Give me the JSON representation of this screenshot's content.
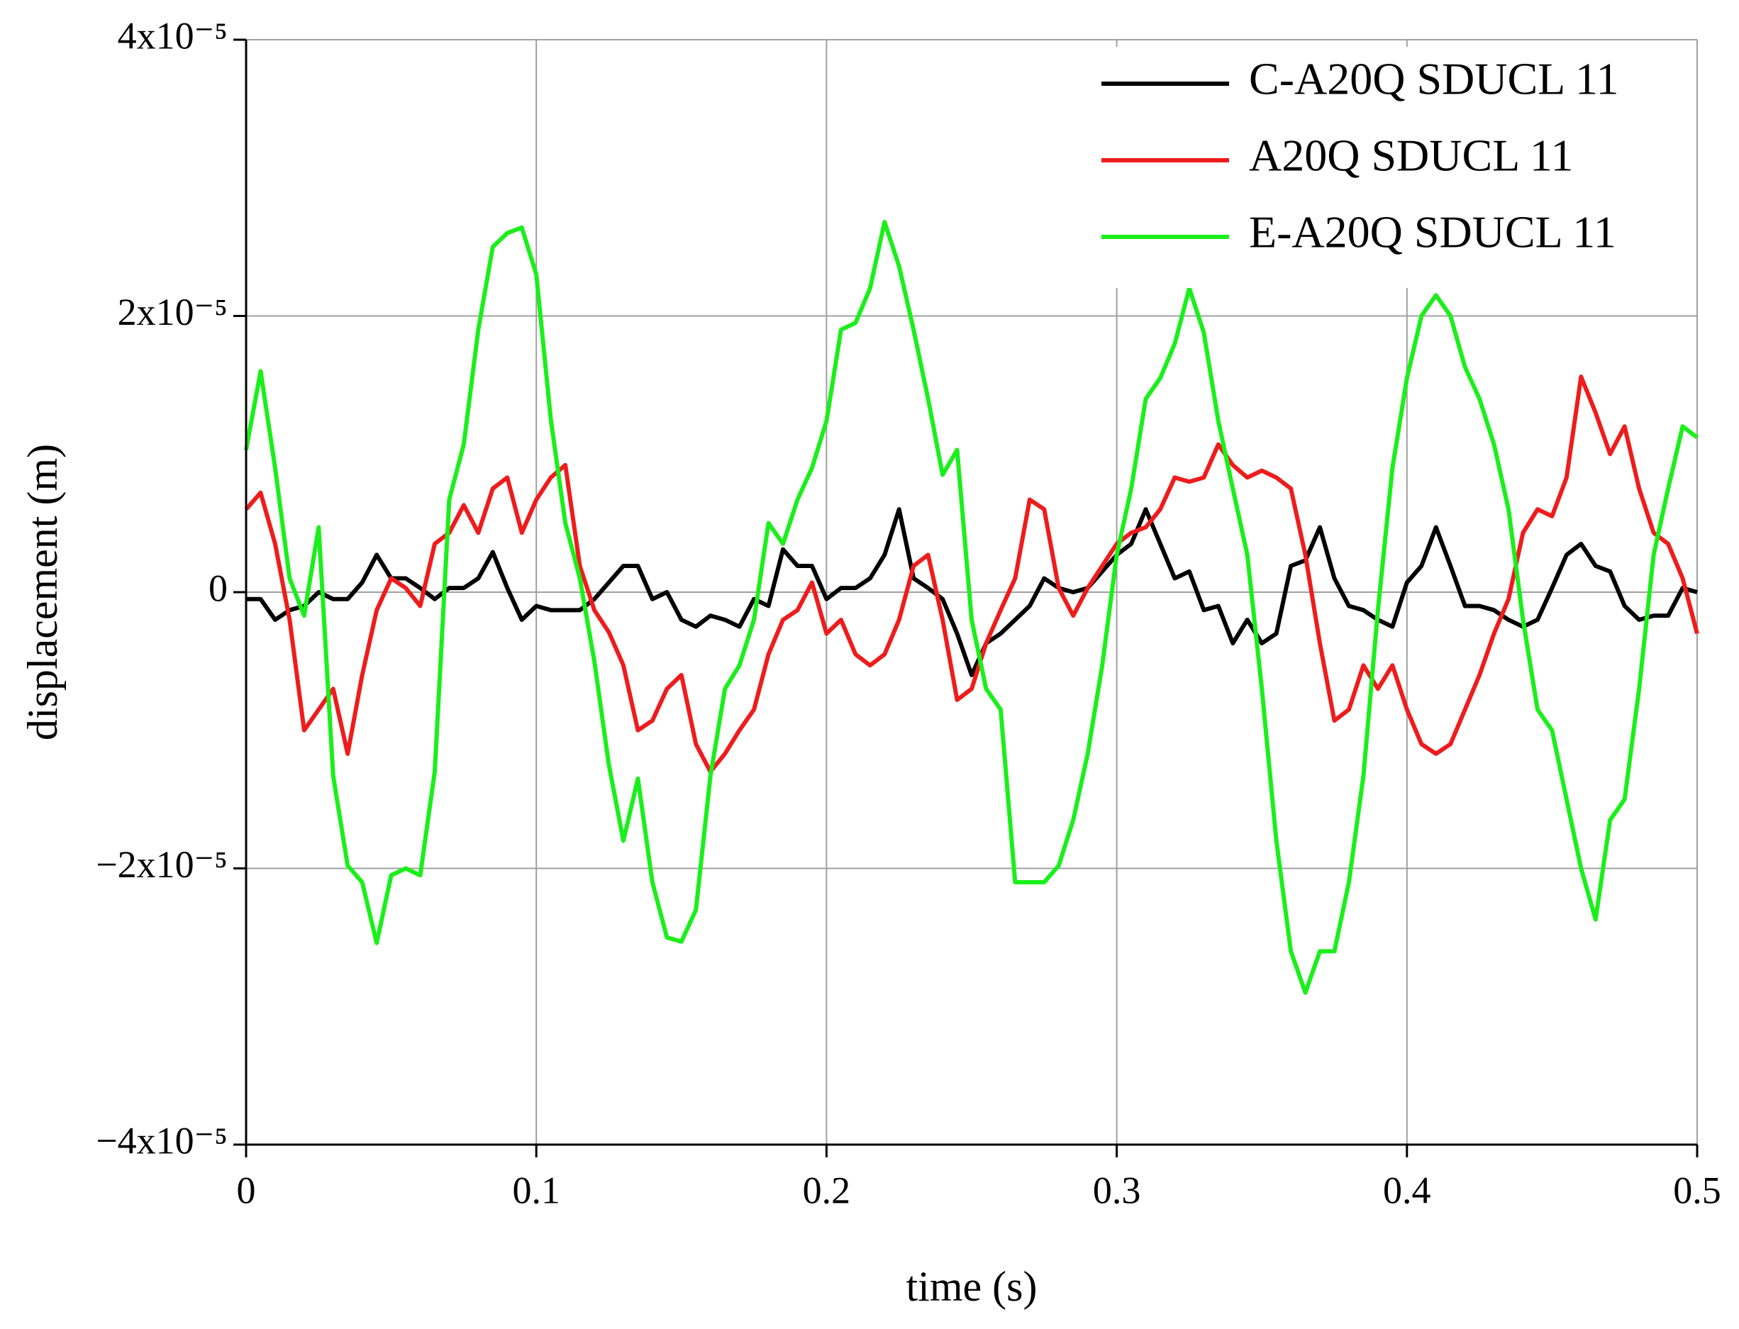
{
  "chart_data": {
    "type": "line",
    "xlabel": "time (s)",
    "ylabel": "displacement (m)",
    "xlim": [
      0,
      0.5
    ],
    "ylim": [
      -4e-05,
      4e-05
    ],
    "xticks": [
      0,
      0.1,
      0.2,
      0.3,
      0.4,
      0.5
    ],
    "yticks": [
      {
        "value": -4e-05,
        "label": "−4x10⁻⁵"
      },
      {
        "value": -2e-05,
        "label": "−2x10⁻⁵"
      },
      0,
      {
        "value": 2e-05,
        "label": "2x10⁻⁵"
      },
      {
        "value": 4e-05,
        "label": "4x10⁻⁵"
      }
    ],
    "grid": true,
    "legend": "upper right",
    "x": [
      0,
      0.005,
      0.01,
      0.015,
      0.02,
      0.025,
      0.03,
      0.035,
      0.04,
      0.045,
      0.05,
      0.055,
      0.06,
      0.065,
      0.07,
      0.075,
      0.08,
      0.085,
      0.09,
      0.095,
      0.1,
      0.105,
      0.11,
      0.115,
      0.12,
      0.125,
      0.13,
      0.135,
      0.14,
      0.145,
      0.15,
      0.155,
      0.16,
      0.165,
      0.17,
      0.175,
      0.18,
      0.185,
      0.19,
      0.195,
      0.2,
      0.205,
      0.21,
      0.215,
      0.22,
      0.225,
      0.23,
      0.235,
      0.24,
      0.245,
      0.25,
      0.255,
      0.26,
      0.265,
      0.27,
      0.275,
      0.28,
      0.285,
      0.29,
      0.295,
      0.3,
      0.305,
      0.31,
      0.315,
      0.32,
      0.325,
      0.33,
      0.335,
      0.34,
      0.345,
      0.35,
      0.355,
      0.36,
      0.365,
      0.37,
      0.375,
      0.38,
      0.385,
      0.39,
      0.395,
      0.4,
      0.405,
      0.41,
      0.415,
      0.42,
      0.425,
      0.43,
      0.435,
      0.44,
      0.445,
      0.45,
      0.455,
      0.46,
      0.465,
      0.47,
      0.475,
      0.48,
      0.485,
      0.49,
      0.495,
      0.5
    ],
    "series": [
      {
        "name": "C-A20Q SDUCL 11",
        "color": "#000000",
        "values": [
          -5e-07,
          -5e-07,
          -2e-06,
          -1.3e-06,
          -1e-06,
          0,
          -5e-07,
          -5e-07,
          7e-07,
          2.7e-06,
          1e-06,
          1e-06,
          3e-07,
          -5e-07,
          3e-07,
          3e-07,
          1e-06,
          2.9e-06,
          3e-07,
          -2e-06,
          -1e-06,
          -1.3e-06,
          -1.3e-06,
          -1.3e-06,
          -5e-07,
          7e-07,
          1.9e-06,
          1.9e-06,
          -5e-07,
          0,
          -2e-06,
          -2.5e-06,
          -1.7e-06,
          -2e-06,
          -2.5e-06,
          -5e-07,
          -1e-06,
          3.1e-06,
          1.9e-06,
          1.9e-06,
          -5e-07,
          3e-07,
          3e-07,
          1e-06,
          2.7e-06,
          6e-06,
          1e-06,
          3e-07,
          -5e-07,
          -3e-06,
          -6e-06,
          -3.7e-06,
          -3e-06,
          -2e-06,
          -1e-06,
          1e-06,
          3e-07,
          0,
          3e-07,
          1.5e-06,
          2.7e-06,
          3.5e-06,
          6e-06,
          3.5e-06,
          1e-06,
          1.5e-06,
          -1.3e-06,
          -1e-06,
          -3.7e-06,
          -2e-06,
          -3.7e-06,
          -3e-06,
          1.9e-06,
          2.3e-06,
          4.7e-06,
          1e-06,
          -1e-06,
          -1.3e-06,
          -2e-06,
          -2.5e-06,
          7e-07,
          1.9e-06,
          4.7e-06,
          1.9e-06,
          -1e-06,
          -1e-06,
          -1.3e-06,
          -2e-06,
          -2.5e-06,
          -2e-06,
          3e-07,
          2.7e-06,
          3.5e-06,
          1.9e-06,
          1.5e-06,
          -1e-06,
          -2e-06,
          -1.7e-06,
          -1.7e-06,
          3e-07,
          0
        ]
      },
      {
        "name": "A20Q SDUCL 11",
        "color": "#ee1c1c",
        "values": [
          6e-06,
          7.2e-06,
          3.5e-06,
          -2e-06,
          -1e-05,
          -8.5e-06,
          -7e-06,
          -1.17e-05,
          -6e-06,
          -1.3e-06,
          1e-06,
          3e-07,
          -1e-06,
          3.5e-06,
          4.3e-06,
          6.3e-06,
          4.3e-06,
          7.5e-06,
          8.3e-06,
          4.3e-06,
          6.7e-06,
          8.3e-06,
          9.2e-06,
          1.9e-06,
          -1.3e-06,
          -2.9e-06,
          -5.3e-06,
          -1e-05,
          -9.3e-06,
          -7e-06,
          -6e-06,
          -1.1e-05,
          -1.3e-05,
          -1.17e-05,
          -1e-05,
          -8.5e-06,
          -4.5e-06,
          -2e-06,
          -1.3e-06,
          7e-07,
          -3e-06,
          -2e-06,
          -4.5e-06,
          -5.3e-06,
          -4.5e-06,
          -2e-06,
          1.9e-06,
          2.7e-06,
          -2e-06,
          -7.8e-06,
          -7e-06,
          -3.7e-06,
          -1.3e-06,
          1e-06,
          6.7e-06,
          6e-06,
          3e-07,
          -1.7e-06,
          3e-07,
          1.9e-06,
          3.5e-06,
          4.3e-06,
          4.7e-06,
          6e-06,
          8.3e-06,
          8e-06,
          8.3e-06,
          1.07e-05,
          9.2e-06,
          8.3e-06,
          8.8e-06,
          8.3e-06,
          7.5e-06,
          2.7e-06,
          -3.7e-06,
          -9.3e-06,
          -8.5e-06,
          -5.3e-06,
          -7e-06,
          -5.3e-06,
          -8.5e-06,
          -1.1e-05,
          -1.17e-05,
          -1.1e-05,
          -8.5e-06,
          -6e-06,
          -3e-06,
          -5e-07,
          4.3e-06,
          6e-06,
          5.5e-06,
          8.3e-06,
          1.56e-05,
          1.3e-05,
          1e-05,
          1.2e-05,
          7.5e-06,
          4.3e-06,
          3.5e-06,
          1e-06,
          -3e-06
        ]
      },
      {
        "name": "E-A20Q SDUCL 11",
        "color": "#1aef1a",
        "values": [
          1.03e-05,
          1.6e-05,
          9e-06,
          1e-06,
          -1.7e-06,
          4.7e-06,
          -1.33e-05,
          -1.98e-05,
          -2.1e-05,
          -2.54e-05,
          -2.05e-05,
          -2e-05,
          -2.05e-05,
          -1.3e-05,
          6.7e-06,
          1.07e-05,
          1.9e-05,
          2.5e-05,
          2.6e-05,
          2.64e-05,
          2.3e-05,
          1.25e-05,
          5e-06,
          1e-06,
          -5e-06,
          -1.25e-05,
          -1.8e-05,
          -1.35e-05,
          -2.1e-05,
          -2.5e-05,
          -2.53e-05,
          -2.3e-05,
          -1.33e-05,
          -7e-06,
          -5.3e-06,
          -2e-06,
          5e-06,
          3.5e-06,
          6.7e-06,
          9e-06,
          1.24e-05,
          1.9e-05,
          1.95e-05,
          2.2e-05,
          2.68e-05,
          2.36e-05,
          1.9e-05,
          1.4e-05,
          8.5e-06,
          1.03e-05,
          -2e-06,
          -7e-06,
          -8.5e-06,
          -2.1e-05,
          -2.1e-05,
          -2.1e-05,
          -1.98e-05,
          -1.65e-05,
          -1.17e-05,
          -5.3e-06,
          2.7e-06,
          7.5e-06,
          1.4e-05,
          1.55e-05,
          1.8e-05,
          2.2e-05,
          1.88e-05,
          1.24e-05,
          7.5e-06,
          2.7e-06,
          -7e-06,
          -1.8e-05,
          -2.6e-05,
          -2.9e-05,
          -2.6e-05,
          -2.6e-05,
          -2.1e-05,
          -1.33e-05,
          -1.3e-06,
          9e-06,
          1.55e-05,
          2e-05,
          2.15e-05,
          2e-05,
          1.63e-05,
          1.4e-05,
          1.07e-05,
          6e-06,
          -2e-06,
          -8.5e-06,
          -1e-05,
          -1.5e-05,
          -2e-05,
          -2.37e-05,
          -1.65e-05,
          -1.5e-05,
          -7e-06,
          2.7e-06,
          7.5e-06,
          1.2e-05,
          1.12e-05
        ]
      }
    ]
  }
}
